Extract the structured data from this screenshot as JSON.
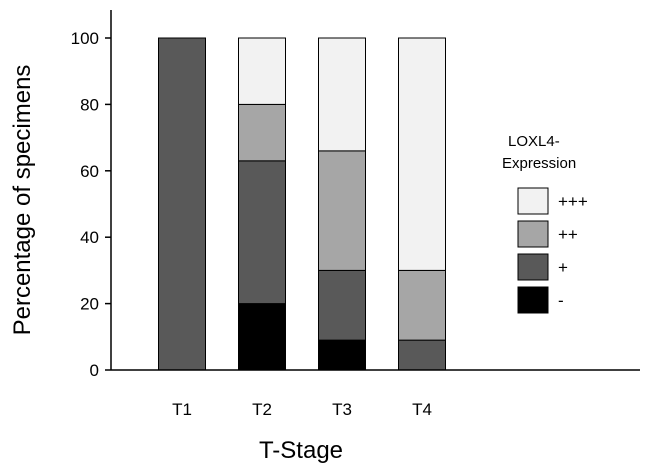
{
  "chart_data": {
    "type": "bar",
    "stacked": true,
    "categories": [
      "T1",
      "T2",
      "T3",
      "T4"
    ],
    "series": [
      {
        "name": "-",
        "color": "#000000",
        "values": [
          0,
          20,
          9,
          0
        ]
      },
      {
        "name": "+",
        "color": "#595959",
        "values": [
          100,
          43,
          21,
          9
        ]
      },
      {
        "name": "++",
        "color": "#a6a6a6",
        "values": [
          0,
          17,
          36,
          21
        ]
      },
      {
        "name": "+++",
        "color": "#f2f2f2",
        "values": [
          0,
          20,
          34,
          70
        ]
      }
    ],
    "xlabel": "T-Stage",
    "ylabel": "Percentage of specimens",
    "ylim": [
      0,
      100
    ],
    "yticks": [
      0,
      20,
      40,
      60,
      80,
      100
    ],
    "legend": {
      "title_line1": "LOXL4-",
      "title_line2": "Expression",
      "placement": "right",
      "order": [
        "+++",
        "++",
        "+",
        "-"
      ]
    },
    "grid": false
  }
}
